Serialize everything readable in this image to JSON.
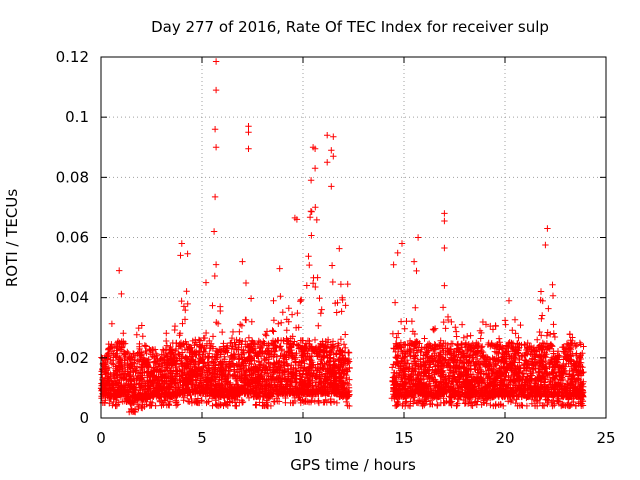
{
  "chart_data": {
    "type": "scatter",
    "title": "Day 277 of 2016, Rate Of TEC Index for receiver sulp",
    "xlabel": "GPS time / hours",
    "ylabel": "ROTI / TECUs",
    "xlim": [
      0,
      25
    ],
    "ylim": [
      0,
      0.12
    ],
    "xticks": [
      0,
      5,
      10,
      15,
      20,
      25
    ],
    "yticks": [
      0,
      0.02,
      0.04,
      0.06,
      0.08,
      0.1,
      0.12
    ],
    "xtick_labels": [
      "0",
      "5",
      "10",
      "15",
      "20",
      "25"
    ],
    "ytick_labels": [
      "0",
      "0.02",
      "0.04",
      "0.06",
      "0.08",
      "0.1",
      "0.12"
    ],
    "grid": true,
    "marker": "+",
    "color": "#ff0000",
    "data_gap_hours": [
      12.3,
      14.4
    ],
    "notable_points": [
      {
        "x": 5.7,
        "y": 0.1185
      },
      {
        "x": 5.7,
        "y": 0.109
      },
      {
        "x": 5.65,
        "y": 0.096
      },
      {
        "x": 5.7,
        "y": 0.09
      },
      {
        "x": 5.65,
        "y": 0.0735
      },
      {
        "x": 7.3,
        "y": 0.097
      },
      {
        "x": 7.3,
        "y": 0.095
      },
      {
        "x": 7.3,
        "y": 0.0895
      },
      {
        "x": 11.2,
        "y": 0.094
      },
      {
        "x": 11.5,
        "y": 0.0935
      },
      {
        "x": 10.5,
        "y": 0.09
      },
      {
        "x": 11.4,
        "y": 0.089
      },
      {
        "x": 10.6,
        "y": 0.0895
      },
      {
        "x": 11.5,
        "y": 0.087
      },
      {
        "x": 11.2,
        "y": 0.085
      },
      {
        "x": 10.6,
        "y": 0.083
      },
      {
        "x": 10.4,
        "y": 0.079
      },
      {
        "x": 11.4,
        "y": 0.077
      },
      {
        "x": 9.6,
        "y": 0.0665
      },
      {
        "x": 9.7,
        "y": 0.066
      },
      {
        "x": 22.1,
        "y": 0.063
      },
      {
        "x": 17.0,
        "y": 0.068
      },
      {
        "x": 17.0,
        "y": 0.0655
      },
      {
        "x": 17.0,
        "y": 0.0565
      },
      {
        "x": 15.7,
        "y": 0.06
      },
      {
        "x": 14.9,
        "y": 0.058
      },
      {
        "x": 4.0,
        "y": 0.058
      },
      {
        "x": 22.0,
        "y": 0.0575
      },
      {
        "x": 5.6,
        "y": 0.062
      },
      {
        "x": 7.0,
        "y": 0.052
      },
      {
        "x": 0.9,
        "y": 0.049
      },
      {
        "x": 15.5,
        "y": 0.052
      },
      {
        "x": 20.2,
        "y": 0.039
      },
      {
        "x": 17.0,
        "y": 0.044
      },
      {
        "x": 5.7,
        "y": 0.051
      }
    ],
    "bands": [
      {
        "x_range": [
          0.0,
          0.3
        ],
        "y_range": [
          0.005,
          0.018
        ]
      },
      {
        "x_range": [
          0.3,
          0.8
        ],
        "y_range": [
          0.004,
          0.036
        ]
      },
      {
        "x_range": [
          0.8,
          1.2
        ],
        "y_range": [
          0.005,
          0.047
        ]
      },
      {
        "x_range": [
          1.2,
          1.7
        ],
        "y_range": [
          0.002,
          0.022
        ]
      },
      {
        "x_range": [
          1.7,
          2.3
        ],
        "y_range": [
          0.003,
          0.033
        ]
      },
      {
        "x_range": [
          2.3,
          3.2
        ],
        "y_range": [
          0.004,
          0.02
        ]
      },
      {
        "x_range": [
          3.2,
          3.9
        ],
        "y_range": [
          0.004,
          0.034
        ]
      },
      {
        "x_range": [
          3.9,
          4.3
        ],
        "y_range": [
          0.005,
          0.055
        ]
      },
      {
        "x_range": [
          4.3,
          4.8
        ],
        "y_range": [
          0.005,
          0.03
        ]
      },
      {
        "x_range": [
          4.8,
          5.2
        ],
        "y_range": [
          0.005,
          0.056
        ]
      },
      {
        "x_range": [
          5.2,
          5.5
        ],
        "y_range": [
          0.005,
          0.035
        ]
      },
      {
        "x_range": [
          5.5,
          6.0
        ],
        "y_range": [
          0.004,
          0.05
        ]
      },
      {
        "x_range": [
          6.0,
          6.8
        ],
        "y_range": [
          0.004,
          0.03
        ]
      },
      {
        "x_range": [
          6.8,
          7.5
        ],
        "y_range": [
          0.005,
          0.045
        ]
      },
      {
        "x_range": [
          7.5,
          8.5
        ],
        "y_range": [
          0.004,
          0.03
        ]
      },
      {
        "x_range": [
          8.5,
          9.5
        ],
        "y_range": [
          0.005,
          0.05
        ]
      },
      {
        "x_range": [
          9.5,
          10.2
        ],
        "y_range": [
          0.005,
          0.045
        ]
      },
      {
        "x_range": [
          10.2,
          10.8
        ],
        "y_range": [
          0.005,
          0.075
        ]
      },
      {
        "x_range": [
          10.8,
          11.3
        ],
        "y_range": [
          0.005,
          0.045
        ]
      },
      {
        "x_range": [
          11.3,
          11.8
        ],
        "y_range": [
          0.005,
          0.07
        ]
      },
      {
        "x_range": [
          11.8,
          12.3
        ],
        "y_range": [
          0.004,
          0.045
        ]
      },
      {
        "x_range": [
          14.4,
          15.0
        ],
        "y_range": [
          0.004,
          0.055
        ]
      },
      {
        "x_range": [
          15.0,
          15.5
        ],
        "y_range": [
          0.004,
          0.035
        ]
      },
      {
        "x_range": [
          15.5,
          15.9
        ],
        "y_range": [
          0.005,
          0.055
        ]
      },
      {
        "x_range": [
          15.9,
          16.8
        ],
        "y_range": [
          0.004,
          0.03
        ]
      },
      {
        "x_range": [
          16.8,
          17.2
        ],
        "y_range": [
          0.005,
          0.045
        ]
      },
      {
        "x_range": [
          17.2,
          19.5
        ],
        "y_range": [
          0.004,
          0.032
        ]
      },
      {
        "x_range": [
          19.5,
          21.5
        ],
        "y_range": [
          0.004,
          0.033
        ]
      },
      {
        "x_range": [
          21.5,
          22.4
        ],
        "y_range": [
          0.004,
          0.045
        ]
      },
      {
        "x_range": [
          22.4,
          23.9
        ],
        "y_range": [
          0.004,
          0.032
        ]
      }
    ]
  }
}
